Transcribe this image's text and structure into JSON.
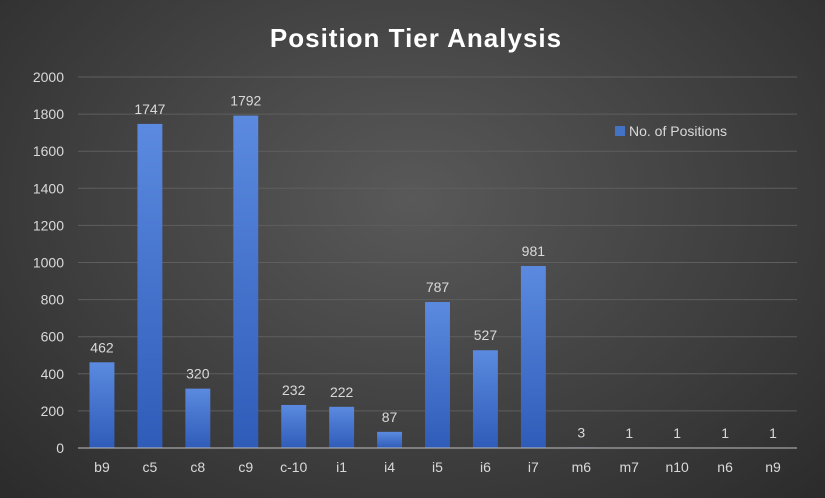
{
  "chart_data": {
    "type": "bar",
    "title": "Position Tier Analysis",
    "xlabel": "",
    "ylabel": "",
    "categories": [
      "b9",
      "c5",
      "c8",
      "c9",
      "c-10",
      "i1",
      "i4",
      "i5",
      "i6",
      "i7",
      "m6",
      "m7",
      "n10",
      "n6",
      "n9"
    ],
    "series": [
      {
        "name": "No. of Positions",
        "values": [
          462,
          1747,
          320,
          1792,
          232,
          222,
          87,
          787,
          527,
          981,
          3,
          1,
          1,
          1,
          1
        ],
        "color": "#4472C4"
      }
    ],
    "ylim": [
      0,
      2000
    ],
    "yticks": [
      0,
      200,
      400,
      600,
      800,
      1000,
      1200,
      1400,
      1600,
      1800,
      2000
    ],
    "grid": true,
    "legend_position": "top-right",
    "data_labels": true
  },
  "colors": {
    "bar_top": "#5b8ae0",
    "bar_bottom": "#2f5cb8"
  }
}
